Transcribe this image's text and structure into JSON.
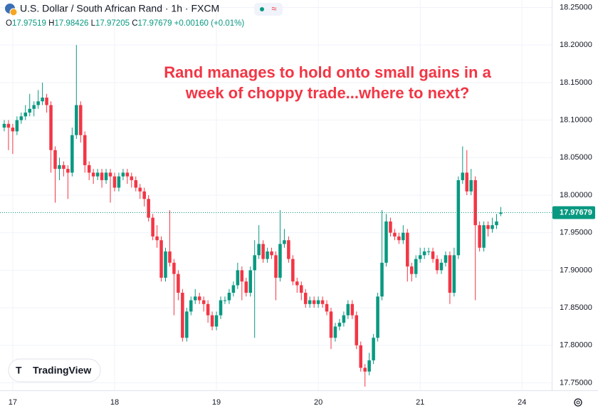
{
  "chart_data": {
    "type": "candlestick",
    "title": "U.S. Dollar / South African Rand · 1h · FXCM",
    "badge": "≈",
    "legend": [
      {
        "label": "O",
        "value": 17.97519
      },
      {
        "label": "H",
        "value": 17.98426
      },
      {
        "label": "L",
        "value": 17.97205
      },
      {
        "label": "C",
        "value": 17.97679
      }
    ],
    "change": "+0.00160",
    "change_percent": "(+0.01%)",
    "annotation": [
      "Rand manages to hold onto small gains in a",
      "week of choppy trade...where to next?"
    ],
    "watermark": "TradingView",
    "up_color": "#089981",
    "down_color": "#f23645",
    "last_price": 17.97679,
    "last_price_color": "#089981",
    "xlim": [
      -3,
      127
    ],
    "xticks": [
      {
        "value": 0,
        "label": "17"
      },
      {
        "value": 24,
        "label": "18"
      },
      {
        "value": 48,
        "label": "19"
      },
      {
        "value": 72,
        "label": "20"
      },
      {
        "value": 96,
        "label": "21"
      },
      {
        "value": 120,
        "label": "24"
      }
    ],
    "ylim": [
      17.74,
      18.26
    ],
    "yticks": [
      {
        "value": 17.75,
        "label": "17.75000"
      },
      {
        "value": 17.8,
        "label": "17.80000"
      },
      {
        "value": 17.85,
        "label": "17.85000"
      },
      {
        "value": 17.9,
        "label": "17.90000"
      },
      {
        "value": 17.95,
        "label": "17.95000"
      },
      {
        "value": 18.0,
        "label": "18.00000"
      },
      {
        "value": 18.05,
        "label": "18.05000"
      },
      {
        "value": 18.1,
        "label": "18.10000"
      },
      {
        "value": 18.15,
        "label": "18.15000"
      },
      {
        "value": 18.2,
        "label": "18.20000"
      },
      {
        "value": 18.25,
        "label": "18.25000"
      }
    ],
    "open": [
      18.09,
      18.095,
      18.09,
      18.085,
      18.1,
      18.105,
      18.11,
      18.115,
      18.12,
      18.125,
      18.13,
      18.12,
      18.06,
      18.035,
      18.04,
      18.035,
      18.03,
      18.08,
      18.12,
      18.08,
      18.04,
      18.03,
      18.025,
      18.03,
      18.02,
      18.03,
      18.025,
      18.01,
      18.025,
      18.03,
      18.025,
      18.02,
      18.01,
      18.005,
      17.995,
      17.97,
      17.945,
      17.94,
      17.89,
      17.925,
      17.91,
      17.895,
      17.87,
      17.81,
      17.845,
      17.86,
      17.865,
      17.86,
      17.855,
      17.84,
      17.825,
      17.84,
      17.86,
      17.86,
      17.87,
      17.88,
      17.9,
      17.885,
      17.87,
      17.9,
      17.92,
      17.935,
      17.915,
      17.925,
      17.92,
      17.89,
      17.935,
      17.94,
      17.915,
      17.885,
      17.88,
      17.87,
      17.855,
      17.86,
      17.855,
      17.86,
      17.855,
      17.845,
      17.81,
      17.825,
      17.83,
      17.84,
      17.855,
      17.84,
      17.8,
      17.77,
      17.765,
      17.78,
      17.81,
      17.865,
      17.91,
      17.965,
      17.95,
      17.945,
      17.94,
      17.95,
      17.905,
      17.895,
      17.915,
      17.92,
      17.925,
      17.925,
      17.915,
      17.9,
      17.91,
      17.92,
      17.87,
      17.92,
      18.02,
      18.03,
      18.005,
      18.02,
      17.96,
      17.93,
      17.96,
      17.955,
      17.96,
      17.97519
    ],
    "high": [
      18.1,
      18.1,
      18.095,
      18.105,
      18.11,
      18.12,
      18.135,
      18.125,
      18.14,
      18.15,
      18.135,
      18.125,
      18.065,
      18.05,
      18.045,
      18.04,
      18.09,
      18.2,
      18.125,
      18.085,
      18.045,
      18.035,
      18.035,
      18.035,
      18.035,
      18.035,
      18.03,
      18.03,
      18.035,
      18.035,
      18.03,
      18.025,
      18.015,
      18.01,
      18.0,
      17.975,
      17.96,
      17.945,
      17.93,
      17.98,
      17.915,
      17.9,
      17.875,
      17.85,
      17.865,
      17.875,
      17.87,
      17.865,
      17.86,
      17.845,
      17.845,
      17.865,
      17.865,
      17.875,
      17.885,
      17.91,
      17.905,
      17.89,
      17.905,
      17.94,
      17.96,
      17.94,
      17.93,
      17.93,
      17.925,
      17.98,
      17.955,
      17.945,
      17.92,
      17.89,
      17.885,
      17.875,
      17.865,
      17.865,
      17.865,
      17.865,
      17.86,
      17.85,
      17.83,
      17.835,
      17.845,
      17.86,
      17.86,
      17.845,
      17.805,
      17.775,
      17.79,
      17.815,
      17.87,
      17.98,
      17.975,
      17.97,
      17.955,
      17.95,
      17.96,
      17.955,
      17.91,
      17.92,
      17.93,
      17.93,
      17.93,
      17.93,
      17.92,
      17.915,
      17.925,
      17.925,
      17.93,
      18.025,
      18.065,
      18.06,
      18.035,
      18.025,
      17.965,
      17.965,
      17.965,
      17.97,
      17.975,
      17.98426
    ],
    "low": [
      18.085,
      18.06,
      18.055,
      18.08,
      18.095,
      18.1,
      18.105,
      18.105,
      18.115,
      18.12,
      18.11,
      18.03,
      17.99,
      18.02,
      18.025,
      17.995,
      18.025,
      18.075,
      18.07,
      18.03,
      18.02,
      18.015,
      18.02,
      18.01,
      18.015,
      17.99,
      18.005,
      18.005,
      18.02,
      18.015,
      18.01,
      18.005,
      17.995,
      17.985,
      17.965,
      17.94,
      17.93,
      17.885,
      17.885,
      17.905,
      17.84,
      17.86,
      17.805,
      17.805,
      17.84,
      17.855,
      17.855,
      17.845,
      17.83,
      17.82,
      17.82,
      17.835,
      17.855,
      17.855,
      17.865,
      17.875,
      17.86,
      17.865,
      17.865,
      17.81,
      17.915,
      17.91,
      17.91,
      17.915,
      17.86,
      17.885,
      17.93,
      17.91,
      17.88,
      17.87,
      17.86,
      17.85,
      17.85,
      17.85,
      17.85,
      17.85,
      17.84,
      17.795,
      17.805,
      17.82,
      17.825,
      17.835,
      17.835,
      17.795,
      17.765,
      17.745,
      17.76,
      17.775,
      17.805,
      17.86,
      17.905,
      17.945,
      17.94,
      17.935,
      17.935,
      17.885,
      17.885,
      17.89,
      17.91,
      17.915,
      17.92,
      17.91,
      17.895,
      17.895,
      17.905,
      17.855,
      17.865,
      17.915,
      18.015,
      18.0,
      18.0,
      17.86,
      17.925,
      17.925,
      17.945,
      17.95,
      17.955,
      17.97205
    ],
    "close": [
      18.095,
      18.09,
      18.085,
      18.1,
      18.105,
      18.11,
      18.115,
      18.12,
      18.125,
      18.13,
      18.12,
      18.06,
      18.035,
      18.04,
      18.035,
      18.03,
      18.08,
      18.12,
      18.08,
      18.04,
      18.03,
      18.025,
      18.03,
      18.02,
      18.03,
      18.025,
      18.01,
      18.025,
      18.03,
      18.025,
      18.02,
      18.01,
      18.005,
      17.995,
      17.97,
      17.945,
      17.94,
      17.89,
      17.925,
      17.91,
      17.895,
      17.87,
      17.81,
      17.845,
      17.86,
      17.865,
      17.86,
      17.855,
      17.84,
      17.825,
      17.84,
      17.86,
      17.86,
      17.87,
      17.88,
      17.9,
      17.885,
      17.87,
      17.9,
      17.92,
      17.935,
      17.915,
      17.925,
      17.92,
      17.89,
      17.935,
      17.94,
      17.915,
      17.885,
      17.88,
      17.87,
      17.855,
      17.86,
      17.855,
      17.86,
      17.855,
      17.845,
      17.81,
      17.825,
      17.83,
      17.84,
      17.855,
      17.84,
      17.8,
      17.77,
      17.765,
      17.78,
      17.81,
      17.865,
      17.91,
      17.965,
      17.95,
      17.945,
      17.94,
      17.95,
      17.905,
      17.895,
      17.915,
      17.92,
      17.925,
      17.925,
      17.915,
      17.9,
      17.91,
      17.92,
      17.87,
      17.92,
      18.02,
      18.03,
      18.005,
      18.02,
      17.96,
      17.93,
      17.96,
      17.955,
      17.96,
      17.965,
      17.97679
    ]
  }
}
